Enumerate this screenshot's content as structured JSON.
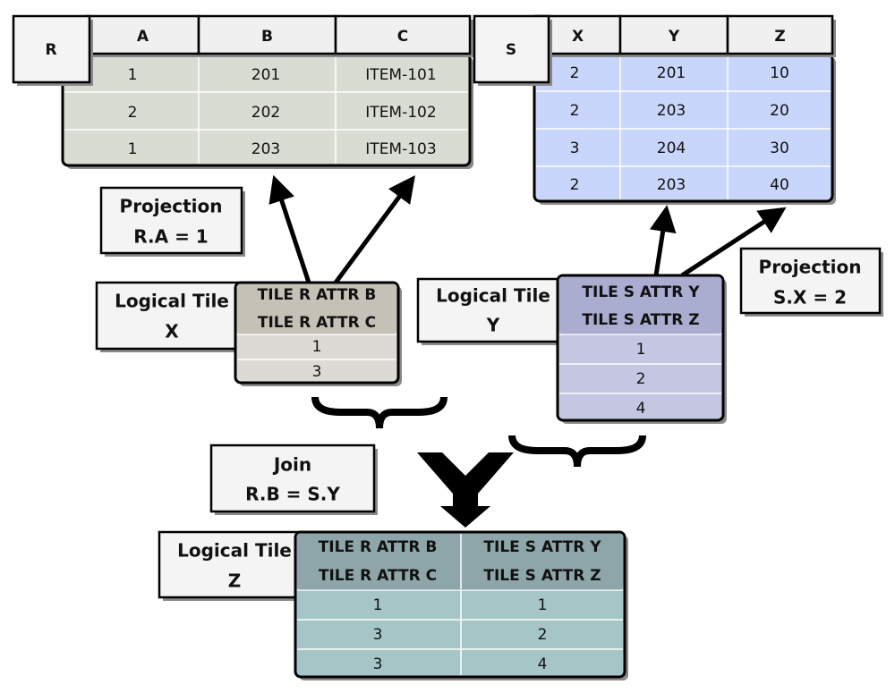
{
  "table_r": {
    "name": "R",
    "columns": [
      "A",
      "B",
      "C"
    ],
    "rows": [
      [
        1,
        201,
        "ITEM-101"
      ],
      [
        2,
        202,
        "ITEM-102"
      ],
      [
        1,
        203,
        "ITEM-103"
      ]
    ]
  },
  "table_s": {
    "name": "S",
    "columns": [
      "X",
      "Y",
      "Z"
    ],
    "rows": [
      [
        2,
        201,
        10
      ],
      [
        2,
        203,
        20
      ],
      [
        3,
        204,
        30
      ],
      [
        2,
        203,
        40
      ]
    ]
  },
  "projection_r": {
    "title": "Projection",
    "condition": "R.A = 1"
  },
  "projection_s": {
    "title": "Projection",
    "condition": "S.X = 2"
  },
  "tile_x": {
    "label": [
      "Logical Tile",
      "X"
    ],
    "header": [
      "TILE R ATTR B",
      "TILE R ATTR C"
    ],
    "rows": [
      1,
      3
    ]
  },
  "tile_y": {
    "label": [
      "Logical Tile",
      "Y"
    ],
    "header": [
      "TILE S ATTR Y",
      "TILE S ATTR Z"
    ],
    "rows": [
      1,
      2,
      4
    ]
  },
  "join": {
    "title": "Join",
    "condition": "R.B = S.Y"
  },
  "tile_z": {
    "label": [
      "Logical Tile",
      "Z"
    ],
    "columns": [
      {
        "header": [
          "TILE R ATTR B",
          "TILE R ATTR C"
        ],
        "rows": [
          1,
          3,
          3
        ]
      },
      {
        "header": [
          "TILE S ATTR Y",
          "TILE S ATTR Z"
        ],
        "rows": [
          1,
          2,
          4
        ]
      }
    ]
  }
}
